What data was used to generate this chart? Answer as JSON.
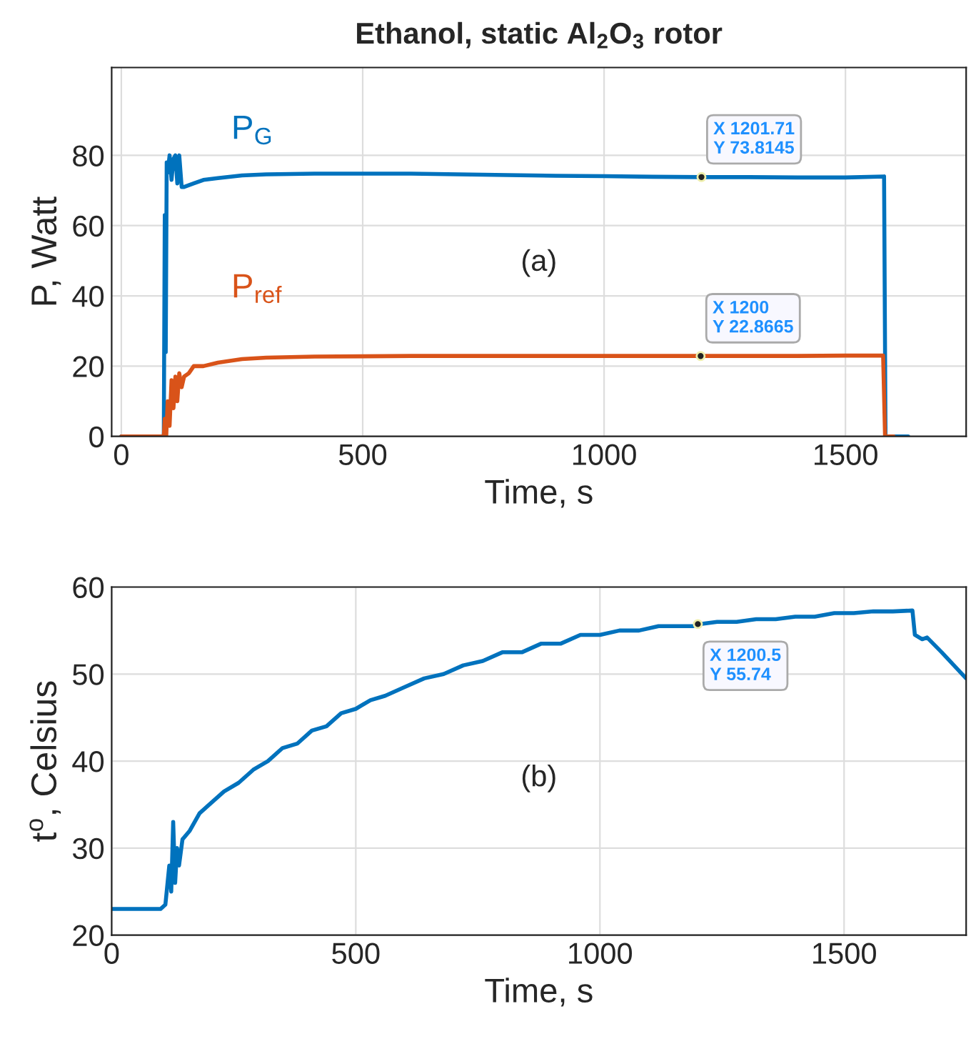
{
  "chart_data": [
    {
      "type": "line",
      "title": "Ethanol, static Al$_{2}$O$_{3}$ rotor",
      "xlabel": "Time, s",
      "ylabel": "P, Watt",
      "xlim": [
        -20,
        1750
      ],
      "xticks": [
        0,
        500,
        1000,
        1500
      ],
      "ylim": [
        0,
        105
      ],
      "yticks": [
        0,
        20,
        40,
        60,
        80
      ],
      "grid": true,
      "series": [
        {
          "name": "P$_{G}$",
          "color": "#0072bd",
          "x": [
            0,
            50,
            88,
            90,
            92,
            94,
            96,
            100,
            104,
            108,
            112,
            116,
            120,
            125,
            130,
            140,
            150,
            170,
            200,
            250,
            300,
            400,
            500,
            600,
            700,
            800,
            900,
            1000,
            1100,
            1201.71,
            1300,
            1400,
            1500,
            1580,
            1583,
            1600,
            1630
          ],
          "values": [
            0,
            0,
            0,
            63,
            24,
            78,
            75,
            80,
            73,
            79,
            80,
            72,
            80,
            71,
            71,
            71.5,
            72,
            73,
            73.5,
            74.3,
            74.6,
            74.8,
            74.8,
            74.8,
            74.6,
            74.4,
            74.2,
            74.1,
            73.9,
            73.8,
            73.8,
            73.7,
            73.7,
            74,
            0,
            0,
            0
          ]
        },
        {
          "name": "P$_{ref}$",
          "color": "#d95319",
          "x": [
            0,
            50,
            88,
            90,
            93,
            96,
            100,
            104,
            108,
            112,
            116,
            120,
            125,
            130,
            140,
            150,
            170,
            200,
            250,
            300,
            400,
            500,
            600,
            700,
            800,
            900,
            1000,
            1100,
            1200,
            1300,
            1400,
            1500,
            1578,
            1582,
            1600
          ],
          "values": [
            0,
            0,
            0,
            5,
            0,
            10,
            3,
            16,
            8,
            17,
            10,
            18,
            14,
            17,
            18,
            20,
            20,
            21,
            22,
            22.4,
            22.7,
            22.8,
            22.9,
            22.9,
            22.9,
            22.9,
            22.9,
            22.9,
            22.9,
            22.9,
            22.9,
            23,
            23,
            0,
            0
          ]
        }
      ],
      "annotations": [
        {
          "text": "X 1201.71\nY 73.8145",
          "x": 1201.71,
          "y": 73.8145
        },
        {
          "text": "X 1200\nY 22.8665",
          "x": 1200,
          "y": 22.8665
        },
        "(a)"
      ]
    },
    {
      "type": "line",
      "xlabel": "Time, s",
      "ylabel": "t$^{o}$, Celsius",
      "xlim": [
        0,
        1750
      ],
      "xticks": [
        0,
        500,
        1000,
        1500
      ],
      "ylim": [
        20,
        60
      ],
      "yticks": [
        20,
        30,
        40,
        50,
        60
      ],
      "grid": true,
      "series": [
        {
          "color": "#0072bd",
          "x": [
            0,
            50,
            100,
            110,
            118,
            122,
            126,
            130,
            134,
            138,
            145,
            160,
            180,
            200,
            230,
            260,
            290,
            320,
            350,
            380,
            410,
            440,
            470,
            500,
            530,
            560,
            600,
            640,
            680,
            720,
            760,
            800,
            840,
            880,
            920,
            960,
            1000,
            1040,
            1080,
            1120,
            1160,
            1190,
            1200.5,
            1240,
            1280,
            1320,
            1360,
            1400,
            1440,
            1480,
            1520,
            1560,
            1600,
            1640,
            1645,
            1660,
            1670,
            1700,
            1750
          ],
          "values": [
            23,
            23,
            23,
            23.5,
            28,
            25,
            33,
            26,
            30,
            28,
            31,
            32,
            34,
            35,
            36.5,
            37.5,
            39,
            40,
            41.5,
            42,
            43.5,
            44,
            45.5,
            46,
            47,
            47.5,
            48.5,
            49.5,
            50,
            51,
            51.5,
            52.5,
            52.5,
            53.5,
            53.5,
            54.5,
            54.5,
            55,
            55,
            55.5,
            55.5,
            55.5,
            55.7,
            56,
            56,
            56.3,
            56.3,
            56.6,
            56.6,
            57,
            57,
            57.2,
            57.2,
            57.3,
            54.5,
            54,
            54.2,
            52.5,
            49.5
          ]
        }
      ],
      "annotations": [
        {
          "text": "X 1200.5\nY 55.74",
          "x": 1200.5,
          "y": 55.74
        },
        "(b)"
      ]
    }
  ]
}
